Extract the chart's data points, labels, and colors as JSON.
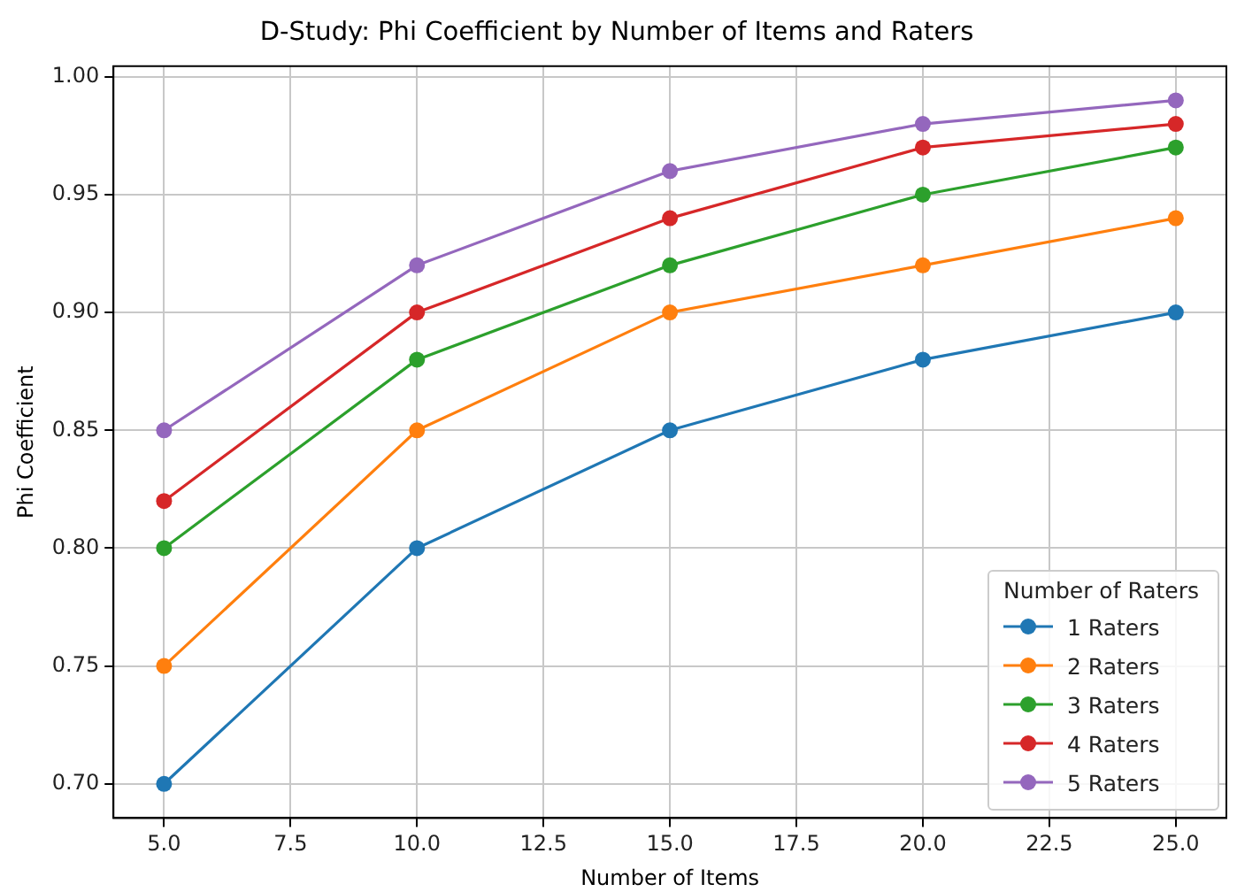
{
  "chart_data": {
    "type": "line",
    "title": "D-Study: Phi Coefficient by Number of Items and Raters",
    "xlabel": "Number of Items",
    "ylabel": "Phi Coefficient",
    "legend_title": "Number of Raters",
    "x": [
      5,
      10,
      15,
      20,
      25
    ],
    "series": [
      {
        "name": "1 Raters",
        "color": "#1f77b4",
        "values": [
          0.7,
          0.8,
          0.85,
          0.88,
          0.9
        ]
      },
      {
        "name": "2 Raters",
        "color": "#ff7f0e",
        "values": [
          0.75,
          0.85,
          0.9,
          0.92,
          0.94
        ]
      },
      {
        "name": "3 Raters",
        "color": "#2ca02c",
        "values": [
          0.8,
          0.88,
          0.92,
          0.95,
          0.97
        ]
      },
      {
        "name": "4 Raters",
        "color": "#d62728",
        "values": [
          0.82,
          0.9,
          0.94,
          0.97,
          0.98
        ]
      },
      {
        "name": "5 Raters",
        "color": "#9467bd",
        "values": [
          0.85,
          0.92,
          0.96,
          0.98,
          0.99
        ]
      }
    ],
    "xlim": [
      4,
      26
    ],
    "xticks": [
      {
        "value": 5,
        "label": "5.0"
      },
      {
        "value": 7.5,
        "label": "7.5"
      },
      {
        "value": 10,
        "label": "10.0"
      },
      {
        "value": 12.5,
        "label": "12.5"
      },
      {
        "value": 15,
        "label": "15.0"
      },
      {
        "value": 17.5,
        "label": "17.5"
      },
      {
        "value": 20,
        "label": "20.0"
      },
      {
        "value": 22.5,
        "label": "22.5"
      },
      {
        "value": 25,
        "label": "25.0"
      }
    ],
    "ylim": [
      0.6855,
      1.0045
    ],
    "yticks": [
      {
        "value": 0.7,
        "label": "0.70"
      },
      {
        "value": 0.75,
        "label": "0.75"
      },
      {
        "value": 0.8,
        "label": "0.80"
      },
      {
        "value": 0.85,
        "label": "0.85"
      },
      {
        "value": 0.9,
        "label": "0.90"
      },
      {
        "value": 0.95,
        "label": "0.95"
      },
      {
        "value": 1.0,
        "label": "1.00"
      }
    ],
    "grid": true,
    "legend": "bottom right",
    "marker": "circle",
    "line_style": "solid"
  }
}
